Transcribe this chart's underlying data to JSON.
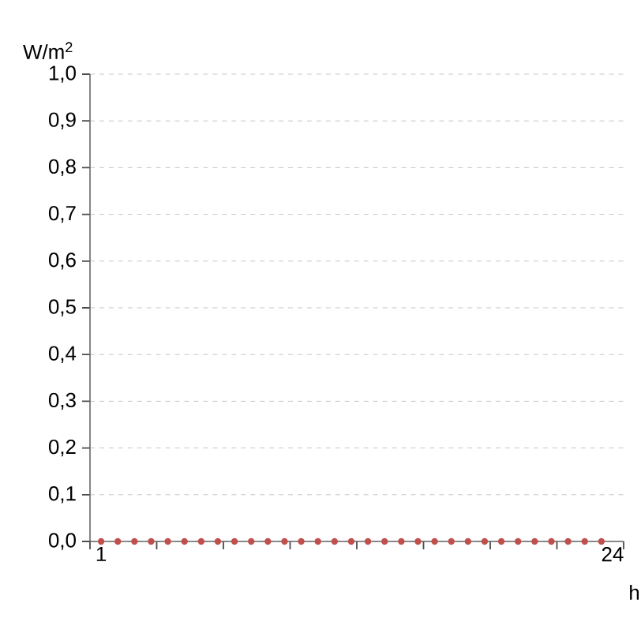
{
  "chart_data": {
    "type": "scatter",
    "xlabel": "h",
    "ylabel": "W/m$^{2}$",
    "x": [
      1,
      1.75,
      2.5,
      3.25,
      4,
      4.75,
      5.5,
      6.25,
      7,
      7.75,
      8.5,
      9.25,
      10,
      10.75,
      11.5,
      12.25,
      13,
      13.75,
      14.5,
      15.25,
      16,
      16.75,
      17.5,
      18.25,
      19,
      19.75,
      20.5,
      21.25,
      22,
      22.75,
      23.5
    ],
    "series": [
      {
        "color": "#c0504d",
        "values": [
          0,
          0,
          0,
          0,
          0,
          0,
          0,
          0,
          0,
          0,
          0,
          0,
          0,
          0,
          0,
          0,
          0,
          0,
          0,
          0,
          0,
          0,
          0,
          0,
          0,
          0,
          0,
          0,
          0,
          0,
          0
        ]
      }
    ],
    "marker": "circle",
    "grid": "y",
    "xlim": [
      0.5,
      24.5
    ],
    "xticks": [
      {
        "value": 0.5,
        "label": null
      },
      {
        "value": 1,
        "label": "1"
      },
      {
        "value": 3.5,
        "label": null
      },
      {
        "value": 6.5,
        "label": null
      },
      {
        "value": 9.5,
        "label": null
      },
      {
        "value": 12.5,
        "label": null
      },
      {
        "value": 15.5,
        "label": null
      },
      {
        "value": 18.5,
        "label": null
      },
      {
        "value": 21.5,
        "label": null
      },
      {
        "value": 24,
        "label": "24"
      },
      {
        "value": 24.5,
        "label": null
      }
    ],
    "ylim": [
      0,
      1
    ],
    "yticks": [
      {
        "value": 0,
        "label": "0,0"
      },
      {
        "value": 0.1,
        "label": "0,1"
      },
      {
        "value": 0.2,
        "label": "0,2"
      },
      {
        "value": 0.3,
        "label": "0,3"
      },
      {
        "value": 0.4,
        "label": "0,4"
      },
      {
        "value": 0.5,
        "label": "0,5"
      },
      {
        "value": 0.6,
        "label": "0,6"
      },
      {
        "value": 0.7,
        "label": "0,7"
      },
      {
        "value": 0.8,
        "label": "0,8"
      },
      {
        "value": 0.9,
        "label": "0,9"
      },
      {
        "value": 1,
        "label": "1,0"
      }
    ]
  }
}
